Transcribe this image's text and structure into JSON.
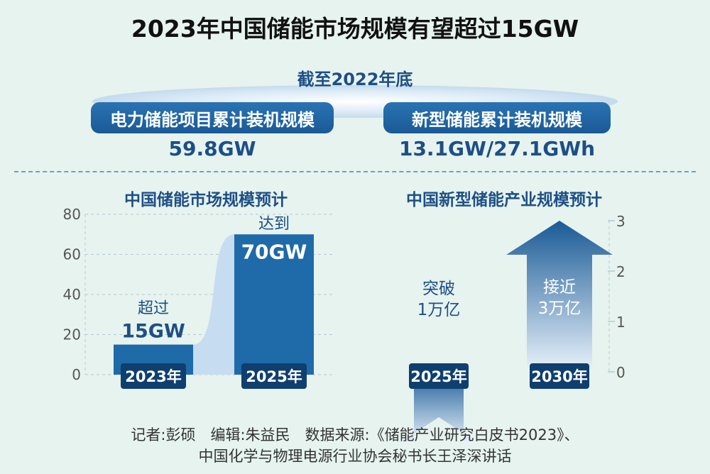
{
  "title": "2023年中国储能市场规模有望超过15GW",
  "as_of": "截至2022年底",
  "stats": [
    {
      "label": "电力储能项目累计装机规模",
      "value": "59.8GW"
    },
    {
      "label": "新型储能累计装机规模",
      "value": "13.1GW/27.1GWh"
    }
  ],
  "chart_data": [
    {
      "type": "bar",
      "title": "中国储能市场规模预计",
      "categories": [
        "2023年",
        "2025年"
      ],
      "values": [
        15,
        70
      ],
      "ylim": [
        0,
        80
      ],
      "yticks": [
        "0",
        "20",
        "40",
        "60",
        "80"
      ],
      "annotations": [
        {
          "prefix": "超过",
          "value_text": "15GW"
        },
        {
          "prefix": "达到",
          "value_text": "70GW"
        }
      ],
      "colors": {
        "bar": "#1f6aa8",
        "band": "#c6dcf1"
      }
    },
    {
      "type": "bar",
      "title": "中国新型储能产业规模预计",
      "categories": [
        "2025年",
        "2030年"
      ],
      "values": [
        1,
        3
      ],
      "ylim": [
        0,
        3
      ],
      "yticks": [
        "0",
        "1",
        "2",
        "3"
      ],
      "annotations": [
        {
          "line1": "突破",
          "line2": "1万亿"
        },
        {
          "line1": "接近",
          "line2": "3万亿"
        }
      ],
      "colors": {
        "arrow_top": "#1a5a96",
        "arrow_bottom": "#eaf3fb"
      }
    }
  ],
  "source": {
    "line1": "记者:彭硕　编辑:朱益民　数据来源:《储能产业研究白皮书2023》、",
    "line2": "中国化学与物理电源行业协会秘书长王泽深讲话"
  }
}
